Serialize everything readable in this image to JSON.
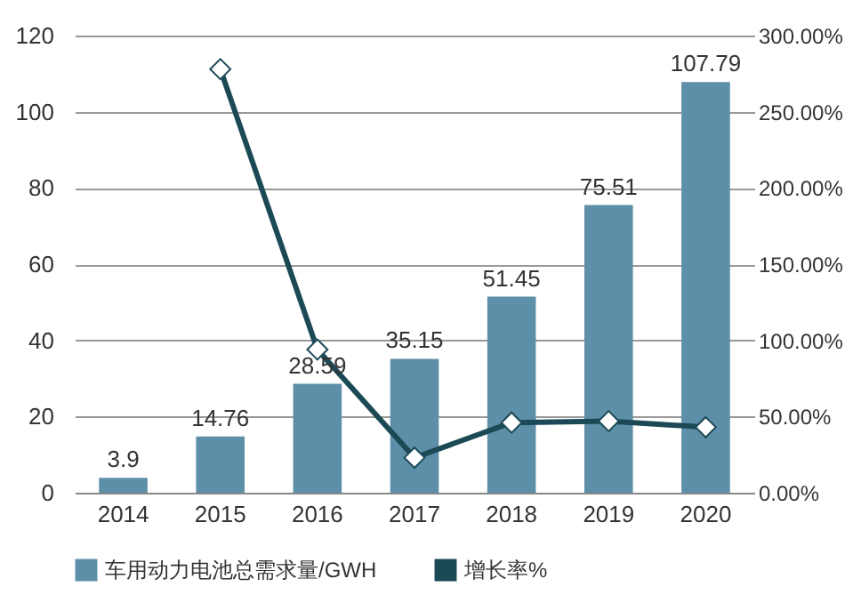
{
  "chart_data": {
    "type": "bar",
    "categories": [
      "2014",
      "2015",
      "2016",
      "2017",
      "2018",
      "2019",
      "2020"
    ],
    "series": [
      {
        "name": "车用动力电池总需求量/GWH",
        "color": "#5e8fa8",
        "values": [
          3.9,
          14.76,
          28.59,
          35.15,
          51.45,
          75.51,
          107.79
        ],
        "value_labels": [
          "3.9",
          "14.76",
          "28.59",
          "35.15",
          "51.45",
          "75.51",
          "107.79"
        ]
      },
      {
        "name": "增长率%",
        "type": "line",
        "axis": "y2",
        "color": "#1b4a56",
        "marker": "diamond",
        "values": [
          null,
          278,
          94,
          23,
          46,
          47,
          43
        ]
      }
    ],
    "ylim": [
      0,
      120
    ],
    "yticks": [
      0,
      20,
      40,
      60,
      80,
      100,
      120
    ],
    "y2lim": [
      0,
      300
    ],
    "y2ticks": [
      {
        "value": 0,
        "label": "0.00%"
      },
      {
        "value": 50,
        "label": "50.00%"
      },
      {
        "value": 100,
        "label": "100.00%"
      },
      {
        "value": 150,
        "label": "150.00%"
      },
      {
        "value": 200,
        "label": "200.00%"
      },
      {
        "value": 250,
        "label": "250.00%"
      },
      {
        "value": 300,
        "label": "300.00%"
      }
    ],
    "grid": "y",
    "legend": "bottom"
  }
}
